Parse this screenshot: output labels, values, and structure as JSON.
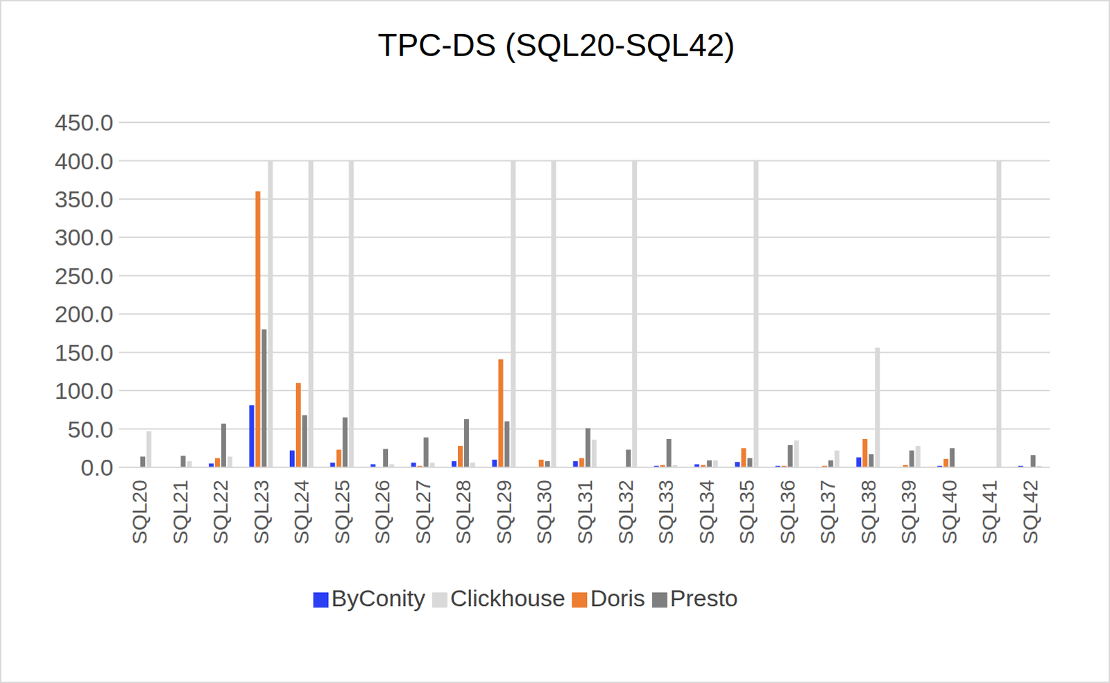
{
  "chart_data": {
    "type": "bar",
    "title": "TPC-DS (SQL20-SQL42)",
    "categories": [
      "SQL20",
      "SQL21",
      "SQL22",
      "SQL23",
      "SQL24",
      "SQL25",
      "SQL26",
      "SQL27",
      "SQL28",
      "SQL29",
      "SQL30",
      "SQL31",
      "SQL32",
      "SQL33",
      "SQL34",
      "SQL35",
      "SQL36",
      "SQL37",
      "SQL38",
      "SQL39",
      "SQL40",
      "SQL41",
      "SQL42"
    ],
    "series": [
      {
        "name": "ByConity",
        "color": "#2b3ff5",
        "values": [
          0,
          0,
          5,
          81,
          22,
          6,
          4,
          6,
          8,
          10,
          0,
          8,
          0,
          2,
          4,
          7,
          2,
          0,
          13,
          0,
          2,
          0,
          2
        ]
      },
      {
        "name": "Doris",
        "color": "#ed7d31",
        "values": [
          0,
          0,
          12,
          360,
          110,
          23,
          0,
          2,
          28,
          141,
          10,
          12,
          0,
          3,
          3,
          25,
          2,
          2,
          37,
          3,
          11,
          0,
          0
        ]
      },
      {
        "name": "Presto",
        "color": "#7f7f7f",
        "values": [
          14,
          15,
          57,
          180,
          68,
          65,
          24,
          39,
          63,
          60,
          8,
          51,
          23,
          37,
          9,
          12,
          29,
          9,
          17,
          22,
          25,
          0,
          16
        ]
      },
      {
        "name": "Clickhouse",
        "color": "#d9d9d9",
        "values": [
          47,
          8,
          14,
          400,
          400,
          400,
          4,
          6,
          6,
          400,
          400,
          36,
          400,
          3,
          9,
          400,
          35,
          22,
          156,
          28,
          0,
          400,
          2
        ]
      }
    ],
    "ylim": [
      0,
      450
    ],
    "yticks": [
      {
        "value": 0,
        "label": "0.0"
      },
      {
        "value": 50,
        "label": "50.0"
      },
      {
        "value": 100,
        "label": "100.0"
      },
      {
        "value": 150,
        "label": "150.0"
      },
      {
        "value": 200,
        "label": "200.0"
      },
      {
        "value": 250,
        "label": "250.0"
      },
      {
        "value": 300,
        "label": "300.0"
      },
      {
        "value": 350,
        "label": "350.0"
      },
      {
        "value": 400,
        "label": "400.0"
      },
      {
        "value": 450,
        "label": "450.0"
      }
    ],
    "grid": true,
    "legend": "bottom"
  }
}
